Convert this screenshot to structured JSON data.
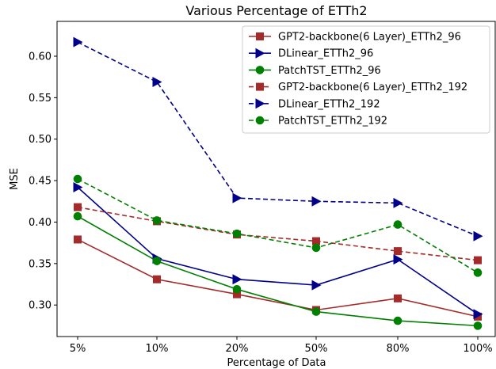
{
  "chart_data": {
    "type": "line",
    "title": "Various Percentage of ETTh2",
    "xlabel": "Percentage of Data",
    "ylabel": "MSE",
    "categories": [
      "5%",
      "10%",
      "20%",
      "50%",
      "80%",
      "100%"
    ],
    "ylim": [
      0.262,
      0.642
    ],
    "yticks": [
      0.3,
      0.35,
      0.4,
      0.45,
      0.5,
      0.55,
      0.6
    ],
    "ytick_labels": [
      "0.30",
      "0.35",
      "0.40",
      "0.45",
      "0.50",
      "0.55",
      "0.60"
    ],
    "grid": false,
    "legend_position": "top-right",
    "series": [
      {
        "name": "GPT2-backbone(6 Layer)_ETTh2_96",
        "color": "#a52a2a",
        "marker": "square",
        "dash": "solid",
        "values": [
          0.379,
          0.331,
          0.313,
          0.294,
          0.308,
          0.286
        ]
      },
      {
        "name": "DLinear_ETTh2_96",
        "color": "#00008b",
        "marker": "triangle-right",
        "dash": "solid",
        "values": [
          0.442,
          0.356,
          0.331,
          0.324,
          0.355,
          0.289
        ]
      },
      {
        "name": "PatchTST_ETTh2_96",
        "color": "#008000",
        "marker": "circle",
        "dash": "solid",
        "values": [
          0.407,
          0.353,
          0.319,
          0.292,
          0.281,
          0.275
        ]
      },
      {
        "name": "GPT2-backbone(6 Layer)_ETTh2_192",
        "color": "#a52a2a",
        "marker": "square",
        "dash": "dashed",
        "values": [
          0.418,
          0.401,
          0.385,
          0.377,
          0.365,
          0.354
        ]
      },
      {
        "name": "DLinear_ETTh2_192",
        "color": "#00008b",
        "marker": "triangle-right",
        "dash": "dashed",
        "values": [
          0.617,
          0.569,
          0.429,
          0.425,
          0.423,
          0.383
        ]
      },
      {
        "name": "PatchTST_ETTh2_192",
        "color": "#008000",
        "marker": "circle",
        "dash": "dashed",
        "values": [
          0.452,
          0.402,
          0.386,
          0.369,
          0.397,
          0.339
        ]
      }
    ]
  }
}
